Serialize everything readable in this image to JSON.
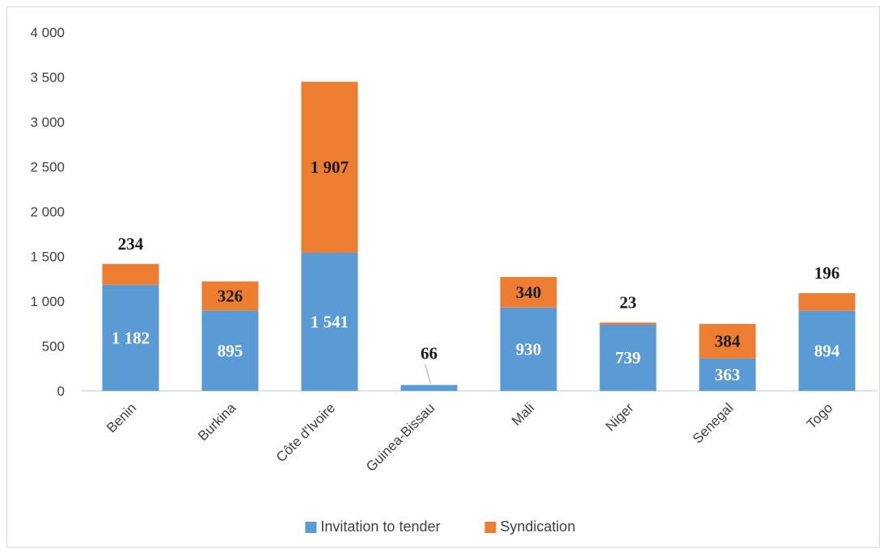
{
  "chart_data": {
    "type": "bar",
    "stacked": true,
    "categories": [
      "Benin",
      "Burkina",
      "Côte d'Ivoire",
      "Guinea-Bissau",
      "Mali",
      "Niger",
      "Senegal",
      "Togo"
    ],
    "series": [
      {
        "name": "Invitation to tender",
        "color": "#5b9bd5",
        "values": [
          1182,
          895,
          1541,
          66,
          930,
          739,
          363,
          894
        ],
        "labels": [
          "1 182",
          "895",
          "1 541",
          "66",
          "930",
          "739",
          "363",
          "894"
        ]
      },
      {
        "name": "Syndication",
        "color": "#ed7d31",
        "values": [
          234,
          326,
          1907,
          0,
          340,
          23,
          384,
          196
        ],
        "labels": [
          "234",
          "326",
          "1 907",
          "",
          "340",
          "23",
          "384",
          "196"
        ]
      }
    ],
    "ylim": [
      0,
      4000
    ],
    "yticks": [
      0,
      500,
      1000,
      1500,
      2000,
      2500,
      3000,
      3500,
      4000
    ],
    "ytick_labels": [
      "0",
      "500",
      "1 000",
      "1 500",
      "2 000",
      "2 500",
      "3 000",
      "3 500",
      "4 000"
    ],
    "title": "",
    "xlabel": "",
    "ylabel": "",
    "grid": false,
    "legend_position": "bottom"
  }
}
